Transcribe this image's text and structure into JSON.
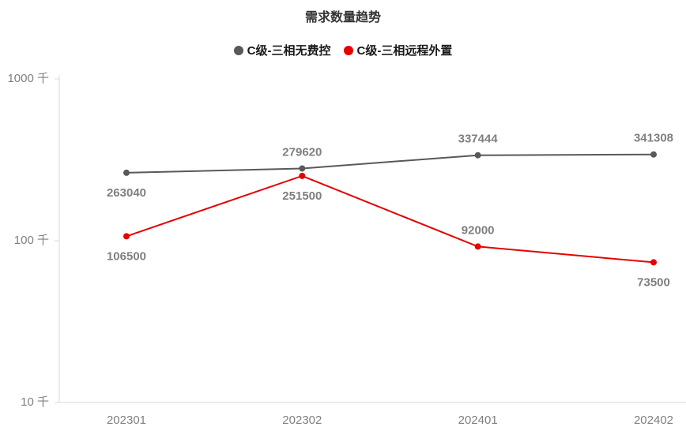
{
  "chart": {
    "title": "需求数量趋势"
  },
  "chart_data": {
    "type": "line",
    "title": "需求数量趋势",
    "x_categories": [
      "202301",
      "202302",
      "202401",
      "202402"
    ],
    "y_axis": {
      "scale": "log",
      "unit": "千",
      "ticks": [
        "1000 千",
        "100 千",
        "10 千"
      ],
      "tick_values": [
        1000000,
        100000,
        10000
      ],
      "ylim": [
        10000,
        1000000
      ]
    },
    "grid": "off",
    "legend_position": "top",
    "axis_color": "#d9d9d9",
    "axis_label_color": "#808080",
    "data_label_color": "#7f7f7f",
    "series": [
      {
        "name": "C级-三相无费控",
        "color": "#595959",
        "values": [
          263040,
          279620,
          337444,
          341308
        ],
        "labels": [
          "263040",
          "279620",
          "337444",
          "341308"
        ],
        "label_side": [
          "below",
          "above",
          "above",
          "above"
        ]
      },
      {
        "name": "C级-三相远程外置",
        "color": "#e60000",
        "values": [
          106500,
          251500,
          92000,
          73500
        ],
        "labels": [
          "106500",
          "251500",
          "92000",
          "73500"
        ],
        "label_side": [
          "below",
          "below",
          "above",
          "below"
        ]
      }
    ]
  }
}
